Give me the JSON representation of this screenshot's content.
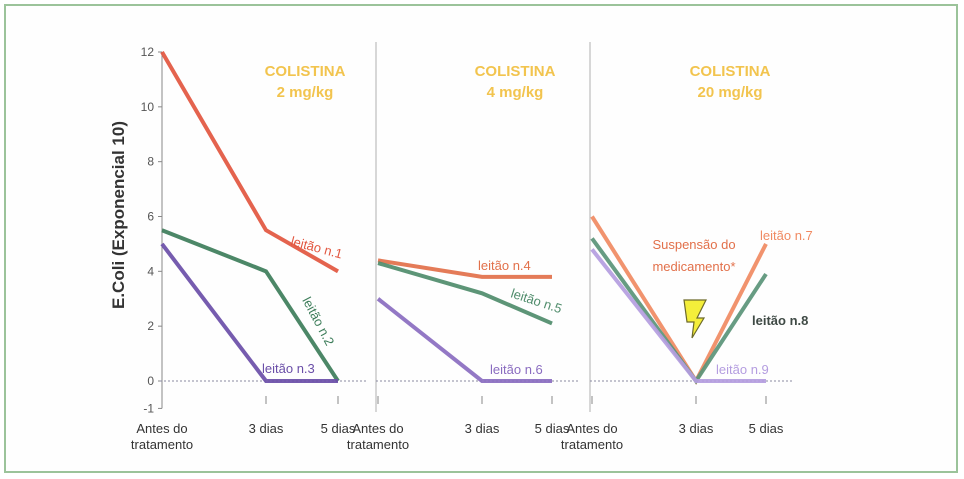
{
  "chart_data": {
    "type": "line",
    "ylabel": "E.Coli (Exponencial 10)",
    "ylim": [
      -1,
      12
    ],
    "yticks": [
      -1,
      0,
      2,
      4,
      6,
      8,
      10,
      12
    ],
    "categories": [
      "Antes do tratamento",
      "3 dias",
      "5 dias"
    ],
    "category_lines": [
      [
        "Antes do",
        "tratamento"
      ],
      [
        "3 dias"
      ],
      [
        "5 dias"
      ]
    ],
    "panels": [
      {
        "title_line1": "COLISTINA",
        "title_line2": "2 mg/kg",
        "series": [
          {
            "name": "leitão n.1",
            "values": [
              12,
              5.5,
              4.0
            ],
            "color": "#e2563f"
          },
          {
            "name": "leitão n.2",
            "values": [
              5.5,
              4.0,
              0
            ],
            "color": "#3d7d5a"
          },
          {
            "name": "leitão n.3",
            "values": [
              5.0,
              0,
              0
            ],
            "color": "#6a4ea8"
          }
        ]
      },
      {
        "title_line1": "COLISTINA",
        "title_line2": "4 mg/kg",
        "series": [
          {
            "name": "leitão n.4",
            "values": [
              4.4,
              3.8,
              3.8
            ],
            "color": "#e2704a"
          },
          {
            "name": "leitão n.5",
            "values": [
              4.3,
              3.2,
              2.1
            ],
            "color": "#4f8c6b"
          },
          {
            "name": "leitão n.6",
            "values": [
              3.0,
              0,
              0
            ],
            "color": "#8a6cc0"
          }
        ]
      },
      {
        "title_line1": "COLISTINA",
        "title_line2": "20 mg/kg",
        "annotation_line1": "Suspensão do",
        "annotation_line2": "medicamento*",
        "series": [
          {
            "name": "leitão n.7",
            "values": [
              6.0,
              0,
              5.0
            ],
            "color": "#f08a62"
          },
          {
            "name": "leitão n.8",
            "values": [
              5.2,
              0,
              3.9
            ],
            "color": "#5a9478"
          },
          {
            "name": "leitão n.9",
            "values": [
              4.8,
              0,
              0
            ],
            "color": "#b49de0"
          }
        ]
      }
    ]
  }
}
